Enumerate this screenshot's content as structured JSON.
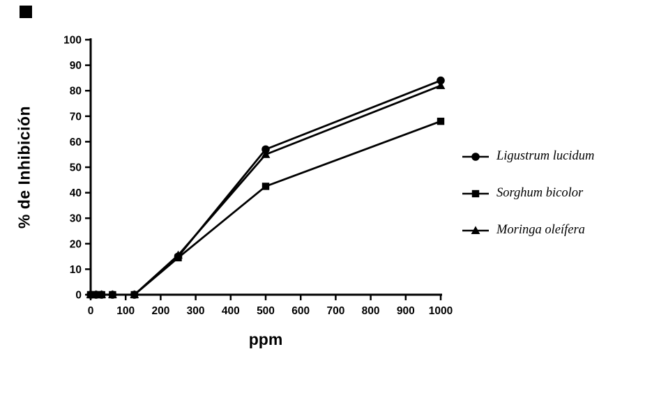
{
  "chart_data": {
    "type": "line",
    "title": "",
    "xlabel": "ppm",
    "ylabel": "% de Inhibición",
    "xlim": [
      0,
      1000
    ],
    "ylim": [
      0,
      100
    ],
    "x_ticks": [
      0,
      100,
      200,
      300,
      400,
      500,
      600,
      700,
      800,
      900,
      1000
    ],
    "y_ticks": [
      0,
      10,
      20,
      30,
      40,
      50,
      60,
      70,
      80,
      90,
      100
    ],
    "grid": "off",
    "legend_position": "right",
    "line_color": "#000000",
    "x": [
      0,
      15.6,
      31.25,
      62.5,
      125,
      250,
      500,
      1000
    ],
    "series": [
      {
        "name": "Ligustrum lucidum",
        "marker": "circle",
        "values": [
          0,
          0,
          0,
          0,
          0,
          15,
          57,
          84
        ]
      },
      {
        "name": "Sorghum bicolor",
        "marker": "square",
        "values": [
          0,
          0,
          0,
          0,
          0,
          14.5,
          42.5,
          68
        ]
      },
      {
        "name": "Moringa oleífera",
        "marker": "triangle",
        "values": [
          0,
          0,
          0,
          0,
          0,
          15.5,
          55,
          82
        ]
      }
    ]
  }
}
